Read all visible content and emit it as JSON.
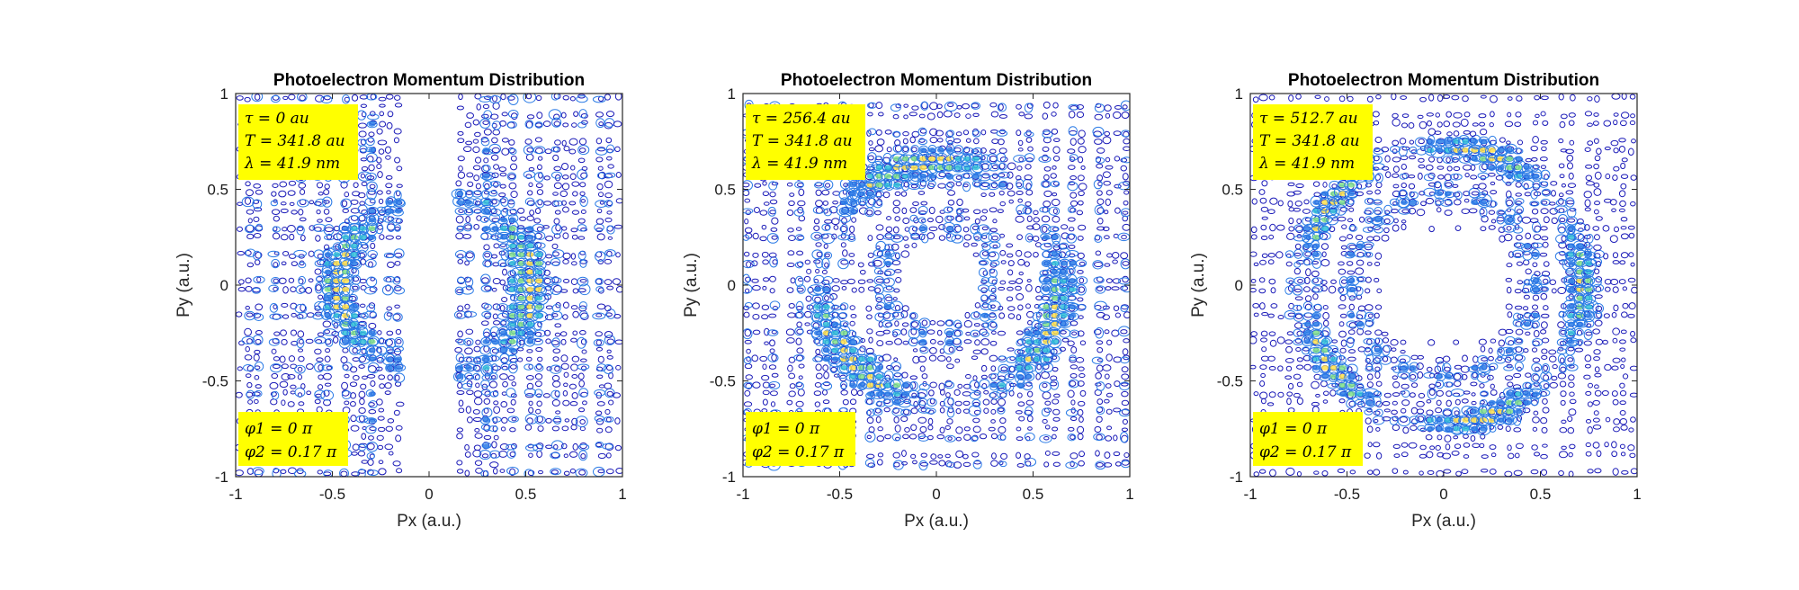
{
  "chart_data": [
    {
      "type": "contour",
      "title": "Photoelectron Momentum Distribution",
      "xlabel": "Px (a.u.)",
      "ylabel": "Py (a.u.)",
      "xlim": [
        -1,
        1
      ],
      "ylim": [
        -1,
        1
      ],
      "xticks": [
        "-1",
        "-0.5",
        "0",
        "0.5",
        "1"
      ],
      "yticks": [
        "-1",
        "-0.5",
        "0",
        "0.5",
        "1"
      ],
      "annotation_top": [
        "τ = 0 au",
        "T = 341.8 au",
        "λ = 41.9 nm"
      ],
      "annotation_bottom": [
        "φ1 = 0 π",
        "φ2 = 0.17 π"
      ],
      "pattern": "lobes",
      "colormap": [
        "#1a1ab8",
        "#2a7be6",
        "#31c0d8",
        "#7fe08a",
        "#ffe04a"
      ],
      "annotation_bg": "#ffff00"
    },
    {
      "type": "contour",
      "title": "Photoelectron Momentum Distribution",
      "xlabel": "Px (a.u.)",
      "ylabel": "Py (a.u.)",
      "xlim": [
        -1,
        1
      ],
      "ylim": [
        -1,
        1
      ],
      "xticks": [
        "-1",
        "-0.5",
        "0",
        "0.5",
        "1"
      ],
      "yticks": [
        "-1",
        "-0.5",
        "0",
        "0.5",
        "1"
      ],
      "annotation_top": [
        "τ = 256.4 au",
        "T = 341.8 au",
        "λ = 41.9 nm"
      ],
      "annotation_bottom": [
        "φ1 = 0 π",
        "φ2 = 0.17 π"
      ],
      "pattern": "ring-offset",
      "colormap": [
        "#1a1ab8",
        "#2a7be6",
        "#31c0d8",
        "#7fe08a",
        "#ffe04a"
      ],
      "annotation_bg": "#ffff00"
    },
    {
      "type": "contour",
      "title": "Photoelectron Momentum Distribution",
      "xlabel": "Px (a.u.)",
      "ylabel": "Py (a.u.)",
      "xlim": [
        -1,
        1
      ],
      "ylim": [
        -1,
        1
      ],
      "xticks": [
        "-1",
        "-0.5",
        "0",
        "0.5",
        "1"
      ],
      "yticks": [
        "-1",
        "-0.5",
        "0",
        "0.5",
        "1"
      ],
      "annotation_top": [
        "τ = 512.7 au",
        "T = 341.8 au",
        "λ = 41.9 nm"
      ],
      "annotation_bottom": [
        "φ1 = 0 π",
        "φ2 = 0.17 π"
      ],
      "pattern": "rings",
      "colormap": [
        "#1a1ab8",
        "#2a7be6",
        "#31c0d8",
        "#7fe08a",
        "#ffe04a"
      ],
      "annotation_bg": "#ffff00"
    }
  ]
}
